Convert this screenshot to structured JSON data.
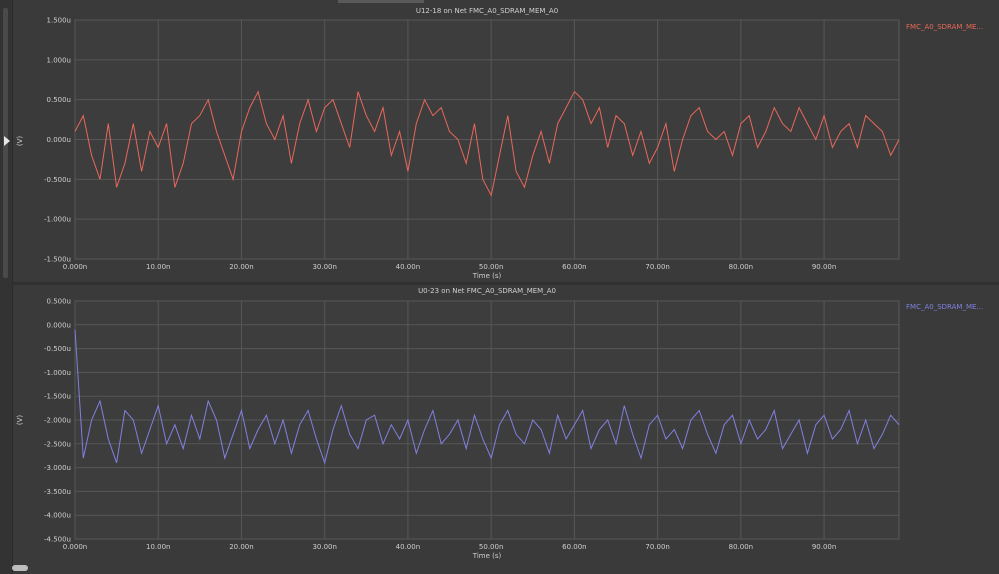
{
  "chart_data": [
    {
      "type": "line",
      "title": "U12-18 on Net FMC_A0_SDRAM_MEM_A0",
      "xlabel": "Time (s)",
      "ylabel": "(V)",
      "legend": "FMC_A0_SDRAM_ME...",
      "legend_position": "top-right",
      "color": "#e8685a",
      "grid": true,
      "xlim": [
        0,
        99
      ],
      "ylim": [
        -1.5,
        1.5
      ],
      "x_ticks": [
        "0.000n",
        "10.00n",
        "20.00n",
        "30.00n",
        "40.00n",
        "50.00n",
        "60.00n",
        "70.00n",
        "80.00n",
        "90.00n"
      ],
      "y_ticks": [
        "1.500u",
        "1.000u",
        "0.500u",
        "0.000u",
        "-0.500u",
        "-1.000u",
        "-1.500u"
      ],
      "x_tick_values": [
        0,
        10,
        20,
        30,
        40,
        50,
        60,
        70,
        80,
        90
      ],
      "y_tick_values": [
        1.5,
        1.0,
        0.5,
        0.0,
        -0.5,
        -1.0,
        -1.5
      ],
      "series": [
        {
          "name": "FMC_A0_SDRAM_ME...",
          "x": [
            0,
            1,
            2,
            3,
            4,
            5,
            6,
            7,
            8,
            9,
            10,
            11,
            12,
            13,
            14,
            15,
            16,
            17,
            18,
            19,
            20,
            21,
            22,
            23,
            24,
            25,
            26,
            27,
            28,
            29,
            30,
            31,
            32,
            33,
            34,
            35,
            36,
            37,
            38,
            39,
            40,
            41,
            42,
            43,
            44,
            45,
            46,
            47,
            48,
            49,
            50,
            51,
            52,
            53,
            54,
            55,
            56,
            57,
            58,
            59,
            60,
            61,
            62,
            63,
            64,
            65,
            66,
            67,
            68,
            69,
            70,
            71,
            72,
            73,
            74,
            75,
            76,
            77,
            78,
            79,
            80,
            81,
            82,
            83,
            84,
            85,
            86,
            87,
            88,
            89,
            90,
            91,
            92,
            93,
            94,
            95,
            96,
            97,
            98,
            99
          ],
          "values": [
            0.1,
            0.3,
            -0.2,
            -0.5,
            0.2,
            -0.6,
            -0.3,
            0.2,
            -0.4,
            0.1,
            -0.1,
            0.2,
            -0.6,
            -0.3,
            0.2,
            0.3,
            0.5,
            0.1,
            -0.2,
            -0.5,
            0.1,
            0.4,
            0.6,
            0.2,
            0.0,
            0.3,
            -0.3,
            0.2,
            0.5,
            0.1,
            0.4,
            0.5,
            0.2,
            -0.1,
            0.6,
            0.3,
            0.1,
            0.4,
            -0.2,
            0.1,
            -0.4,
            0.2,
            0.5,
            0.3,
            0.4,
            0.1,
            0.0,
            -0.3,
            0.2,
            -0.5,
            -0.7,
            -0.2,
            0.3,
            -0.4,
            -0.6,
            -0.2,
            0.1,
            -0.3,
            0.2,
            0.4,
            0.6,
            0.5,
            0.2,
            0.4,
            -0.1,
            0.3,
            0.2,
            -0.2,
            0.1,
            -0.3,
            -0.1,
            0.2,
            -0.4,
            0.0,
            0.3,
            0.4,
            0.1,
            0.0,
            0.1,
            -0.2,
            0.2,
            0.3,
            -0.1,
            0.1,
            0.4,
            0.2,
            0.1,
            0.4,
            0.2,
            0.0,
            0.3,
            -0.1,
            0.1,
            0.2,
            -0.1,
            0.3,
            0.2,
            0.1,
            -0.2,
            0.0
          ]
        }
      ]
    },
    {
      "type": "line",
      "title": "U0-23 on Net FMC_A0_SDRAM_MEM_A0",
      "xlabel": "Time (s)",
      "ylabel": "(V)",
      "legend": "FMC_A0_SDRAM_ME...",
      "legend_position": "top-right",
      "color": "#8080e0",
      "grid": true,
      "xlim": [
        0,
        99
      ],
      "ylim": [
        -4.5,
        0.5
      ],
      "x_ticks": [
        "0.000n",
        "10.00n",
        "20.00n",
        "30.00n",
        "40.00n",
        "50.00n",
        "60.00n",
        "70.00n",
        "80.00n",
        "90.00n"
      ],
      "y_ticks": [
        "0.500u",
        "0.000u",
        "-0.500u",
        "-1.000u",
        "-1.500u",
        "-2.000u",
        "-2.500u",
        "-3.000u",
        "-3.500u",
        "-4.000u",
        "-4.500u"
      ],
      "x_tick_values": [
        0,
        10,
        20,
        30,
        40,
        50,
        60,
        70,
        80,
        90
      ],
      "y_tick_values": [
        0.5,
        0.0,
        -0.5,
        -1.0,
        -1.5,
        -2.0,
        -2.5,
        -3.0,
        -3.5,
        -4.0,
        -4.5
      ],
      "series": [
        {
          "name": "FMC_A0_SDRAM_ME...",
          "x": [
            0,
            1,
            2,
            3,
            4,
            5,
            6,
            7,
            8,
            9,
            10,
            11,
            12,
            13,
            14,
            15,
            16,
            17,
            18,
            19,
            20,
            21,
            22,
            23,
            24,
            25,
            26,
            27,
            28,
            29,
            30,
            31,
            32,
            33,
            34,
            35,
            36,
            37,
            38,
            39,
            40,
            41,
            42,
            43,
            44,
            45,
            46,
            47,
            48,
            49,
            50,
            51,
            52,
            53,
            54,
            55,
            56,
            57,
            58,
            59,
            60,
            61,
            62,
            63,
            64,
            65,
            66,
            67,
            68,
            69,
            70,
            71,
            72,
            73,
            74,
            75,
            76,
            77,
            78,
            79,
            80,
            81,
            82,
            83,
            84,
            85,
            86,
            87,
            88,
            89,
            90,
            91,
            92,
            93,
            94,
            95,
            96,
            97,
            98,
            99
          ],
          "values": [
            -0.1,
            -2.8,
            -2.0,
            -1.6,
            -2.4,
            -2.9,
            -1.8,
            -2.0,
            -2.7,
            -2.2,
            -1.7,
            -2.5,
            -2.1,
            -2.6,
            -1.9,
            -2.4,
            -1.6,
            -2.0,
            -2.8,
            -2.3,
            -1.8,
            -2.6,
            -2.2,
            -1.9,
            -2.5,
            -2.0,
            -2.7,
            -2.1,
            -1.8,
            -2.4,
            -2.9,
            -2.2,
            -1.7,
            -2.3,
            -2.6,
            -2.0,
            -1.9,
            -2.5,
            -2.1,
            -2.4,
            -2.0,
            -2.7,
            -2.2,
            -1.8,
            -2.5,
            -2.3,
            -2.0,
            -2.6,
            -1.9,
            -2.4,
            -2.8,
            -2.1,
            -1.8,
            -2.3,
            -2.5,
            -2.0,
            -2.2,
            -2.7,
            -1.9,
            -2.4,
            -2.1,
            -1.8,
            -2.6,
            -2.2,
            -2.0,
            -2.5,
            -1.7,
            -2.3,
            -2.8,
            -2.1,
            -1.9,
            -2.4,
            -2.2,
            -2.6,
            -2.0,
            -1.8,
            -2.3,
            -2.7,
            -2.1,
            -1.9,
            -2.5,
            -2.0,
            -2.4,
            -2.2,
            -1.8,
            -2.6,
            -2.3,
            -2.0,
            -2.7,
            -2.1,
            -1.9,
            -2.4,
            -2.2,
            -1.8,
            -2.5,
            -2.0,
            -2.6,
            -2.3,
            -1.9,
            -2.1
          ]
        }
      ]
    }
  ]
}
